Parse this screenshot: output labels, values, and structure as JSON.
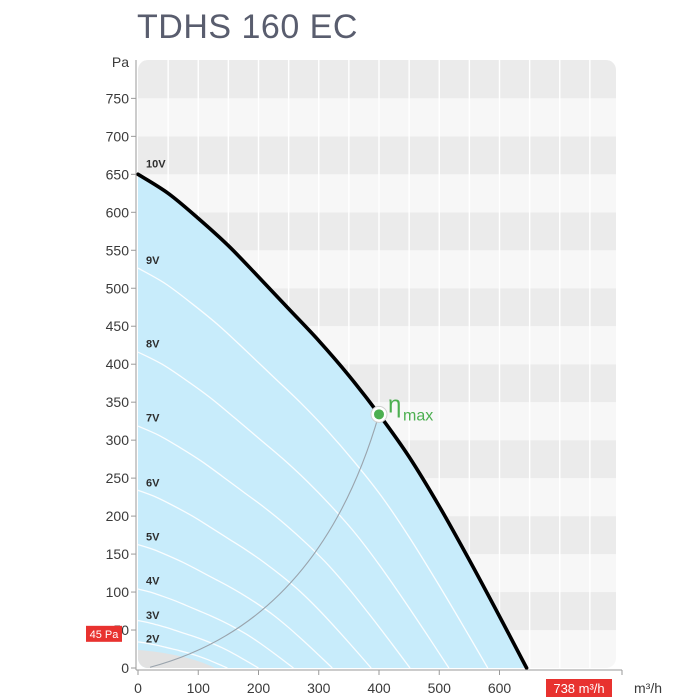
{
  "chart_data": {
    "type": "line",
    "title": "TDHS 160 EC",
    "ylabel": "Pa",
    "xlabel": "m³/h",
    "xlim": [
      0,
      770
    ],
    "ylim": [
      0,
      800
    ],
    "x_ticks": [
      0,
      100,
      200,
      300,
      400,
      500,
      600
    ],
    "y_ticks": [
      0,
      50,
      100,
      150,
      200,
      250,
      300,
      350,
      400,
      450,
      500,
      550,
      600,
      650,
      700,
      750
    ],
    "max_curve": {
      "name": "10V",
      "x": [
        0,
        50,
        100,
        150,
        200,
        250,
        300,
        350,
        400,
        450,
        500,
        550,
        600,
        645
      ],
      "y": [
        650,
        625,
        592,
        556,
        515,
        473,
        431,
        385,
        334,
        278,
        213,
        142,
        68,
        0
      ]
    },
    "voltage_labels": [
      {
        "label": "9V",
        "y": 537
      },
      {
        "label": "8V",
        "y": 427
      },
      {
        "label": "7V",
        "y": 330
      },
      {
        "label": "6V",
        "y": 244
      },
      {
        "label": "5V",
        "y": 173
      },
      {
        "label": "4V",
        "y": 115
      },
      {
        "label": "3V",
        "y": 70
      },
      {
        "label": "2V",
        "y": 39
      }
    ],
    "voltage_series": [
      {
        "factor": 0.9
      },
      {
        "factor": 0.8
      },
      {
        "factor": 0.7
      },
      {
        "factor": 0.6
      },
      {
        "factor": 0.5
      },
      {
        "factor": 0.4
      },
      {
        "factor": 0.31
      },
      {
        "factor": 0.23
      }
    ],
    "eta_max": {
      "label": "η",
      "subscript": "max",
      "x": 400,
      "y": 334
    },
    "markers": {
      "pressure": {
        "label": "45 Pa",
        "value": 45
      },
      "flow": {
        "label": "738 m³/h",
        "value": 738
      }
    },
    "colors": {
      "fill": "#c8ecfb",
      "curve": "#000000",
      "eta": "#4caf50",
      "marker": "#e8322f",
      "band_dark": "#ebebeb",
      "band_light": "#f7f7f7"
    }
  }
}
